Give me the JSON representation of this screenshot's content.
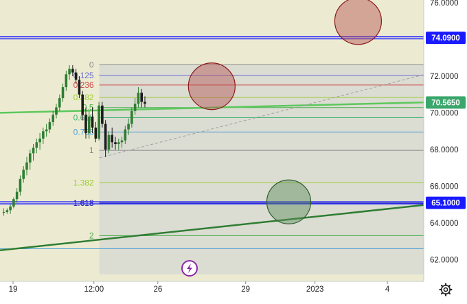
{
  "chart_data": {
    "type": "candlestick",
    "y_axis": {
      "ticks": [
        "76.0000",
        "72.0000",
        "70.0000",
        "68.0000",
        "66.0000",
        "64.0000",
        "62.0000"
      ],
      "tick_values": [
        76,
        72,
        70,
        68,
        66,
        64,
        62
      ],
      "range": [
        61.2,
        76.1
      ]
    },
    "x_axis": {
      "ticks": [
        "19",
        "12:00",
        "26",
        "29",
        "2023",
        "4"
      ],
      "tick_index": [
        0,
        5.25,
        9.4,
        15.1,
        19.6,
        24.3
      ]
    },
    "price_labels": [
      {
        "text": "74.0900",
        "value": 74.09,
        "color": "#1a1aff"
      },
      {
        "text": "70.5650",
        "value": 70.565,
        "color": "#3aa66b"
      },
      {
        "text": "65.1000",
        "value": 65.1,
        "color": "#1a1aff"
      }
    ],
    "horizontal_lines": [
      {
        "value": 74.09,
        "color": "#1a1aff"
      },
      {
        "value": 65.1,
        "color": "#1a1aff"
      }
    ],
    "trend_lines": [
      {
        "from": [
          -1,
          70.0
        ],
        "to": [
          28.0,
          70.6
        ],
        "color": "#5cc85c"
      },
      {
        "from": [
          -1,
          62.5
        ],
        "to": [
          28.0,
          65.1
        ],
        "color": "#2e7d32"
      },
      {
        "from": [
          5.6,
          67.55
        ],
        "to": [
          27.2,
          72.2
        ],
        "color": "#a0a0a0",
        "dashed": true
      }
    ],
    "fibonacci": {
      "from_index": 5.6,
      "to_index": 27.5,
      "levels": [
        {
          "ratio": "0",
          "price": 72.62,
          "color": "#888888"
        },
        {
          "ratio": "0.125",
          "price": 72.04,
          "color": "#6b6bd6"
        },
        {
          "ratio": "0.236",
          "price": 71.52,
          "color": "#d04a4a"
        },
        {
          "ratio": "0.382",
          "price": 70.84,
          "color": "#9acd32"
        },
        {
          "ratio": "0.5",
          "price": 70.29,
          "color": "#4caf50"
        },
        {
          "ratio": "0.618",
          "price": 69.74,
          "color": "#3cb371"
        },
        {
          "ratio": "0.786",
          "price": 68.96,
          "color": "#4a9fd6"
        },
        {
          "ratio": "1",
          "price": 67.96,
          "color": "#888888"
        },
        {
          "ratio": "1.382",
          "price": 66.19,
          "color": "#9acd32"
        },
        {
          "ratio": "1.618",
          "price": 65.09,
          "color": "#1a1a9f"
        },
        {
          "ratio": "2",
          "price": 63.31,
          "color": "#4caf50"
        }
      ]
    },
    "extra_levels": [
      {
        "price": 62.6,
        "color": "#4a9fd6"
      }
    ],
    "circles": [
      {
        "center": [
          22.4,
          75.0
        ],
        "color": "red"
      },
      {
        "center": [
          12.9,
          71.45
        ],
        "color": "red"
      },
      {
        "center": [
          17.9,
          65.15
        ],
        "color": "green"
      }
    ],
    "candles": [
      [
        64.6,
        64.8,
        64.4,
        64.6
      ],
      [
        64.6,
        64.8,
        64.5,
        64.7
      ],
      [
        64.7,
        65.0,
        64.5,
        64.9
      ],
      [
        64.9,
        65.4,
        64.8,
        65.3
      ],
      [
        65.3,
        65.9,
        65.1,
        65.7
      ],
      [
        65.7,
        66.6,
        65.5,
        66.4
      ],
      [
        66.4,
        67.1,
        66.2,
        66.9
      ],
      [
        66.9,
        67.6,
        66.6,
        67.3
      ],
      [
        67.3,
        68.0,
        66.9,
        67.8
      ],
      [
        67.8,
        68.3,
        67.4,
        68.1
      ],
      [
        68.1,
        68.6,
        67.8,
        68.4
      ],
      [
        68.4,
        68.9,
        68.0,
        68.6
      ],
      [
        68.6,
        69.2,
        68.3,
        69.0
      ],
      [
        69.0,
        69.4,
        68.7,
        69.1
      ],
      [
        69.1,
        69.7,
        68.9,
        69.5
      ],
      [
        69.5,
        70.1,
        69.3,
        69.9
      ],
      [
        69.9,
        70.5,
        69.7,
        70.3
      ],
      [
        70.3,
        71.0,
        70.1,
        70.8
      ],
      [
        70.8,
        71.6,
        70.6,
        71.4
      ],
      [
        71.4,
        72.3,
        71.2,
        72.1
      ],
      [
        72.1,
        72.6,
        71.8,
        72.4
      ],
      [
        72.4,
        72.6,
        72.0,
        72.2
      ],
      [
        72.2,
        72.4,
        71.6,
        71.8
      ],
      [
        71.8,
        72.0,
        70.8,
        71.0
      ],
      [
        71.0,
        71.2,
        69.6,
        69.9
      ],
      [
        69.9,
        70.3,
        68.6,
        68.9
      ],
      [
        68.9,
        70.1,
        68.6,
        69.8
      ],
      [
        69.8,
        70.3,
        68.9,
        69.2
      ],
      [
        69.2,
        69.5,
        68.4,
        68.6
      ],
      [
        68.6,
        70.6,
        68.5,
        70.4
      ],
      [
        70.4,
        70.6,
        69.2,
        69.4
      ],
      [
        69.4,
        69.6,
        67.6,
        68.0
      ],
      [
        68.0,
        69.0,
        67.8,
        68.8
      ],
      [
        68.8,
        69.2,
        68.1,
        68.4
      ],
      [
        68.4,
        68.7,
        68.0,
        68.3
      ],
      [
        68.3,
        68.6,
        68.0,
        68.4
      ],
      [
        68.4,
        68.7,
        68.1,
        68.5
      ],
      [
        68.5,
        69.3,
        68.3,
        69.1
      ],
      [
        69.1,
        69.7,
        68.8,
        69.4
      ],
      [
        69.4,
        70.3,
        69.2,
        70.1
      ],
      [
        70.1,
        70.8,
        69.9,
        70.5
      ],
      [
        70.5,
        71.4,
        70.3,
        71.1
      ],
      [
        71.1,
        71.3,
        70.3,
        70.6
      ],
      [
        70.6,
        70.9,
        70.3,
        70.5
      ]
    ],
    "candle_index": {
      "first": -0.6,
      "step": 0.213
    },
    "bull_color": "#2e7d32",
    "bear_color": "#1b1b1b"
  },
  "ui": {
    "settings_icon": "gear-icon",
    "lightning_icon": "lightning-icon",
    "colors": {
      "background": "#ecebd2",
      "axis_background": "#ffffff",
      "fib_zone": "#d9dad2"
    }
  }
}
